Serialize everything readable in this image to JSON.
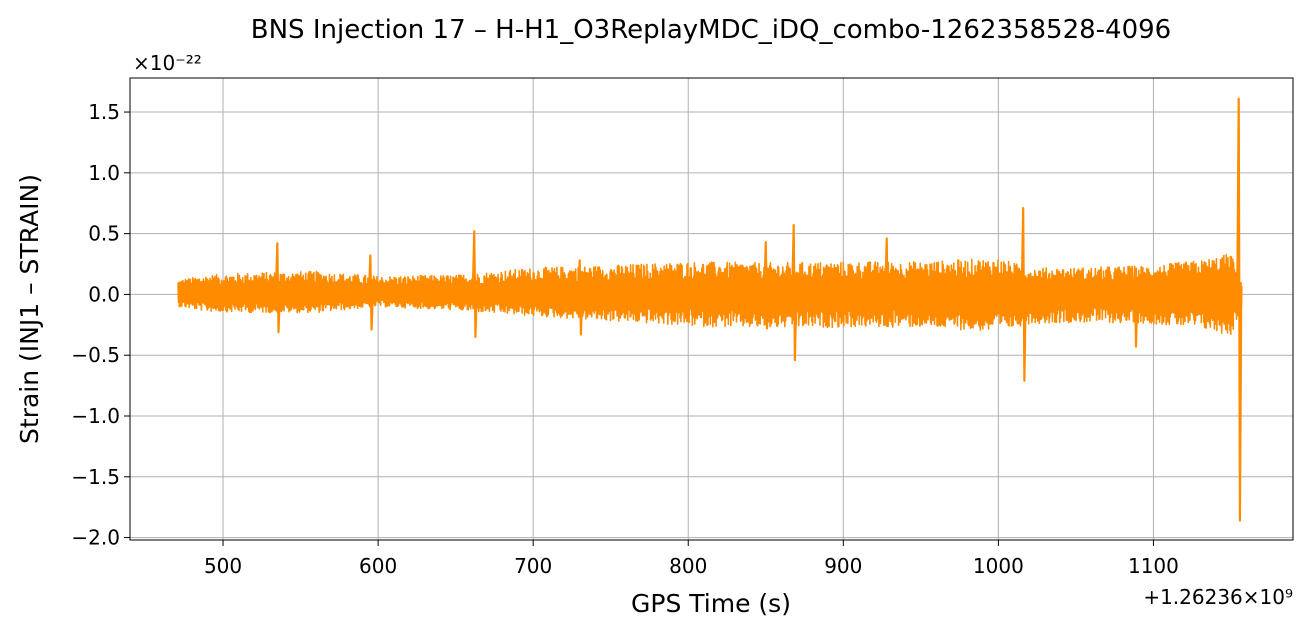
{
  "chart_data": {
    "type": "line",
    "title": "BNS Injection 17 – H-H1_O3ReplayMDC_iDQ_combo-1262358528-4096",
    "xlabel": "GPS Time (s)",
    "ylabel": "Strain (INJ1 – STRAIN)",
    "x_offset_text": "+1.26236×10⁹",
    "y_scale_text": "×10⁻²²",
    "xlim": [
      440,
      1190
    ],
    "ylim": [
      -2.02,
      1.78
    ],
    "x_ticks": [
      500,
      600,
      700,
      800,
      900,
      1000,
      1100
    ],
    "y_ticks": [
      -2.0,
      -1.5,
      -1.0,
      -0.5,
      0.0,
      0.5,
      1.0,
      1.5
    ],
    "x_tick_labels": [
      "500",
      "600",
      "700",
      "800",
      "900",
      "1000",
      "1100"
    ],
    "y_tick_labels": [
      "−2.0",
      "−1.5",
      "−1.0",
      "−0.5",
      "0.0",
      "0.5",
      "1.0",
      "1.5"
    ],
    "grid": true,
    "series": [
      {
        "color": "#ff8c00",
        "envelope": {
          "x": [
            471,
            490,
            520,
            560,
            600,
            650,
            700,
            750,
            800,
            850,
            900,
            950,
            1000,
            1020,
            1050,
            1100,
            1130,
            1150,
            1157
          ],
          "upper": [
            0.12,
            0.16,
            0.18,
            0.19,
            0.15,
            0.16,
            0.22,
            0.24,
            0.27,
            0.26,
            0.27,
            0.27,
            0.3,
            0.22,
            0.22,
            0.24,
            0.28,
            0.34,
            0.1
          ],
          "lower": [
            -0.1,
            -0.14,
            -0.15,
            -0.15,
            -0.1,
            -0.13,
            -0.18,
            -0.22,
            -0.26,
            -0.28,
            -0.27,
            -0.27,
            -0.31,
            -0.24,
            -0.23,
            -0.24,
            -0.28,
            -0.34,
            -0.1
          ]
        },
        "spikes": [
          {
            "x": 535,
            "high": 0.42,
            "low": -0.31
          },
          {
            "x": 595,
            "high": 0.32,
            "low": -0.29
          },
          {
            "x": 662,
            "high": 0.52,
            "low": -0.35
          },
          {
            "x": 730,
            "high": 0.28,
            "low": -0.33
          },
          {
            "x": 850,
            "high": 0.43,
            "low": -0.28
          },
          {
            "x": 868,
            "high": 0.57,
            "low": -0.54
          },
          {
            "x": 928,
            "high": 0.46,
            "low": -0.26
          },
          {
            "x": 1016,
            "high": 0.71,
            "low": -0.71
          },
          {
            "x": 1088,
            "high": 0.2,
            "low": -0.43
          },
          {
            "x": 1155,
            "high": 1.61,
            "low": -1.86
          }
        ]
      }
    ]
  }
}
